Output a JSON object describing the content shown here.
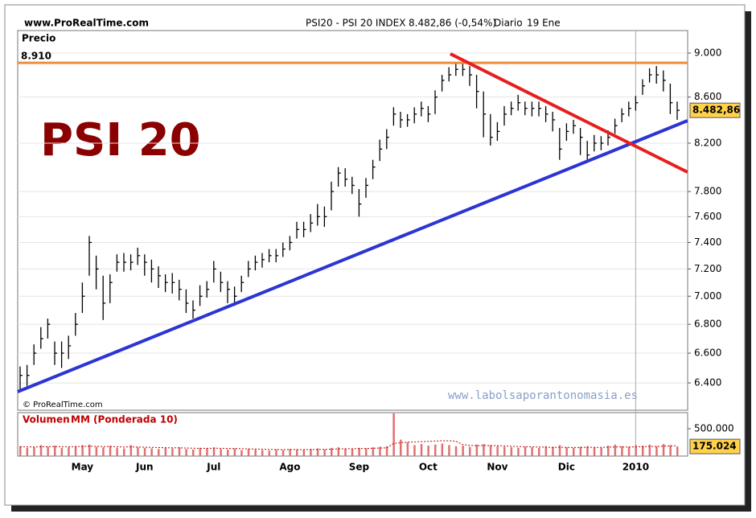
{
  "header": {
    "site": "www.ProRealTime.com",
    "instrument": "PSI20 - PSI 20 INDEX",
    "quote": "8.482,86 (-0,54%)",
    "period": "Diario",
    "date": "19 Ene"
  },
  "chart_data": {
    "type": "ohlc",
    "title": "PSI 20",
    "y_label": "Precio",
    "copyright": "© ProRealTime.com",
    "watermark": "www.labolsaporantonomasia.es",
    "log_scale": true,
    "grid": true,
    "ylim": [
      6222,
      9212
    ],
    "yticks": [
      {
        "value": 6400,
        "label": "6.400"
      },
      {
        "value": 6600,
        "label": "6.600"
      },
      {
        "value": 6800,
        "label": "6.800"
      },
      {
        "value": 7000,
        "label": "7.000"
      },
      {
        "value": 7200,
        "label": "7.200"
      },
      {
        "value": 7400,
        "label": "7.400"
      },
      {
        "value": 7600,
        "label": "7.600"
      },
      {
        "value": 7800,
        "label": "7.800"
      },
      {
        "value": 8200,
        "label": "8.200"
      },
      {
        "value": 8600,
        "label": "8.600"
      },
      {
        "value": 9000,
        "label": "9.000"
      }
    ],
    "categories": [
      null,
      null,
      null,
      null,
      null,
      null,
      null,
      null,
      null,
      "May",
      null,
      null,
      null,
      null,
      null,
      null,
      null,
      null,
      "Jun",
      null,
      null,
      null,
      null,
      null,
      null,
      null,
      null,
      null,
      "Jul",
      null,
      null,
      null,
      null,
      null,
      null,
      null,
      null,
      null,
      null,
      "Ago",
      null,
      null,
      null,
      null,
      null,
      null,
      null,
      null,
      null,
      "Sep",
      null,
      null,
      null,
      null,
      null,
      null,
      null,
      null,
      null,
      "Oct",
      null,
      null,
      null,
      null,
      null,
      null,
      null,
      null,
      null,
      "Nov",
      null,
      null,
      null,
      null,
      null,
      null,
      null,
      null,
      null,
      "Dic",
      null,
      null,
      null,
      null,
      null,
      null,
      null,
      null,
      null,
      "2010",
      null,
      null,
      null,
      null,
      null,
      null
    ],
    "year_separator": "2010",
    "color": "#000000",
    "high": [
      6510,
      6520,
      6660,
      6780,
      6840,
      6680,
      6680,
      6720,
      6880,
      7100,
      7450,
      7300,
      7150,
      7160,
      7310,
      7320,
      7310,
      7360,
      7310,
      7270,
      7220,
      7160,
      7170,
      7120,
      7050,
      6970,
      7080,
      7110,
      7260,
      7180,
      7110,
      7070,
      7150,
      7260,
      7300,
      7320,
      7350,
      7350,
      7400,
      7450,
      7560,
      7560,
      7620,
      7700,
      7680,
      7880,
      8000,
      7990,
      7920,
      7820,
      7910,
      8060,
      8230,
      8320,
      8510,
      8470,
      8450,
      8510,
      8560,
      8520,
      8660,
      8800,
      8870,
      8900,
      8900,
      8880,
      8800,
      8650,
      8450,
      8380,
      8520,
      8560,
      8620,
      8560,
      8560,
      8560,
      8520,
      8470,
      8330,
      8370,
      8400,
      8330,
      8220,
      8270,
      8260,
      8310,
      8410,
      8500,
      8560,
      8610,
      8760,
      8860,
      8880,
      8840,
      8720,
      8560
    ],
    "low": [
      6350,
      6380,
      6520,
      6630,
      6700,
      6520,
      6500,
      6560,
      6720,
      6880,
      7150,
      7050,
      6830,
      6950,
      7180,
      7180,
      7190,
      7230,
      7150,
      7100,
      7060,
      7030,
      7020,
      6970,
      6880,
      6840,
      6930,
      6990,
      7100,
      7030,
      6950,
      6930,
      7030,
      7140,
      7190,
      7210,
      7250,
      7250,
      7290,
      7340,
      7430,
      7440,
      7480,
      7530,
      7520,
      7650,
      7840,
      7840,
      7780,
      7600,
      7750,
      7900,
      8050,
      8150,
      8350,
      8330,
      8340,
      8370,
      8430,
      8380,
      8450,
      8650,
      8740,
      8790,
      8790,
      8700,
      8500,
      8250,
      8180,
      8220,
      8350,
      8440,
      8480,
      8440,
      8430,
      8430,
      8380,
      8300,
      8060,
      8220,
      8280,
      8100,
      8040,
      8130,
      8140,
      8180,
      8280,
      8380,
      8430,
      8480,
      8620,
      8730,
      8720,
      8650,
      8450,
      8400
    ],
    "close": [
      6450,
      6450,
      6600,
      6700,
      6800,
      6600,
      6600,
      6650,
      6800,
      7000,
      7400,
      7200,
      6950,
      7100,
      7250,
      7250,
      7250,
      7300,
      7250,
      7200,
      7150,
      7100,
      7100,
      7050,
      6950,
      6900,
      7000,
      7050,
      7200,
      7100,
      7050,
      7000,
      7100,
      7200,
      7250,
      7270,
      7300,
      7300,
      7350,
      7400,
      7500,
      7500,
      7550,
      7600,
      7600,
      7800,
      7950,
      7900,
      7850,
      7700,
      7850,
      8000,
      8150,
      8250,
      8450,
      8400,
      8400,
      8450,
      8500,
      8450,
      8600,
      8750,
      8800,
      8850,
      8850,
      8800,
      8650,
      8450,
      8250,
      8300,
      8450,
      8500,
      8550,
      8500,
      8500,
      8500,
      8450,
      8400,
      8150,
      8300,
      8350,
      8250,
      8100,
      8200,
      8200,
      8250,
      8350,
      8450,
      8500,
      8550,
      8700,
      8800,
      8800,
      8750,
      8550,
      8482.86
    ],
    "last_label": "8.482,86",
    "hline": {
      "value": 8910,
      "label": "8.910",
      "color": "#f08c3c"
    },
    "trendlines": [
      {
        "color": "#2b35d4",
        "x": [
          -0.35,
          96.5
        ],
        "values": [
          6342,
          8393
        ]
      },
      {
        "color": "#e81e1e",
        "x": [
          62.2,
          96.5
        ],
        "values": [
          8993,
          7958
        ]
      }
    ],
    "volume": {
      "label": "Volumen",
      "ma_label": "MM (Ponderada 10)",
      "ylim": [
        0,
        794000
      ],
      "yticks": [
        {
          "value": 500000,
          "label": "500.000"
        }
      ],
      "color": "#e07070",
      "ma_color": "#c00000",
      "last_label": "175.024",
      "values": [
        180000,
        150000,
        160000,
        200000,
        170000,
        190000,
        150000,
        160000,
        180000,
        200000,
        210000,
        170000,
        160000,
        190000,
        150000,
        140000,
        200000,
        160000,
        150000,
        140000,
        130000,
        150000,
        140000,
        160000,
        130000,
        120000,
        150000,
        140000,
        160000,
        130000,
        120000,
        140000,
        110000,
        130000,
        120000,
        110000,
        100000,
        120000,
        110000,
        130000,
        120000,
        110000,
        130000,
        140000,
        120000,
        150000,
        160000,
        140000,
        130000,
        150000,
        140000,
        160000,
        170000,
        180000,
        780000,
        300000,
        250000,
        200000,
        220000,
        190000,
        210000,
        230000,
        200000,
        180000,
        190000,
        170000,
        210000,
        220000,
        200000,
        180000,
        170000,
        160000,
        150000,
        170000,
        160000,
        150000,
        180000,
        170000,
        200000,
        160000,
        150000,
        170000,
        180000,
        160000,
        150000,
        190000,
        210000,
        180000,
        170000,
        200000,
        190000,
        210000,
        180000,
        220000,
        200000,
        175024
      ],
      "ma": [
        170000,
        168000,
        166000,
        170000,
        172000,
        175000,
        172000,
        170000,
        172000,
        176000,
        180000,
        178000,
        175000,
        174000,
        170000,
        165000,
        168000,
        165000,
        162000,
        158000,
        155000,
        152000,
        150000,
        150000,
        147000,
        143000,
        142000,
        141000,
        143000,
        142000,
        139000,
        138000,
        134000,
        132000,
        129000,
        126000,
        121000,
        120000,
        118000,
        119000,
        119000,
        117000,
        119000,
        121000,
        122000,
        126000,
        131000,
        133000,
        134000,
        137000,
        139000,
        142000,
        146000,
        150000,
        230000,
        244000,
        254000,
        258000,
        265000,
        268000,
        275000,
        280000,
        280000,
        272000,
        210000,
        196000,
        190000,
        194000,
        192000,
        191000,
        186000,
        179000,
        173000,
        171000,
        168000,
        165000,
        162000,
        157000,
        160000,
        158000,
        156000,
        157000,
        160000,
        159000,
        158000,
        162000,
        166000,
        167000,
        164000,
        168000,
        171000,
        175000,
        176000,
        181000,
        186000,
        188000
      ]
    }
  }
}
